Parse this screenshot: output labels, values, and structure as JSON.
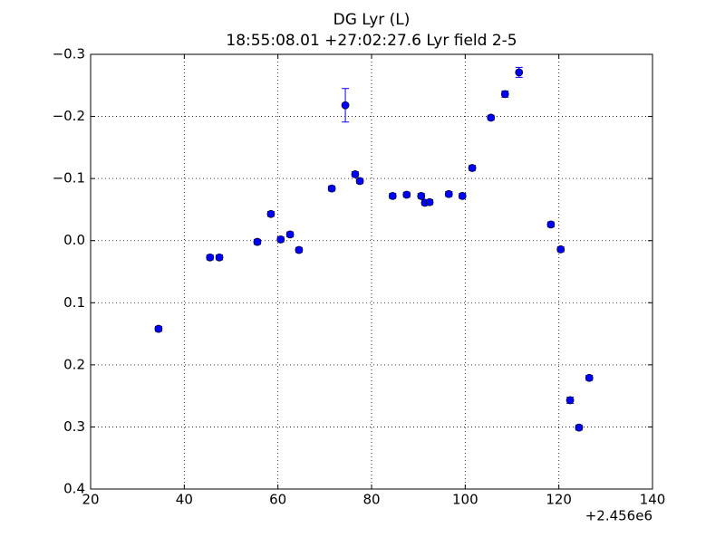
{
  "chart_data": {
    "type": "scatter",
    "title": "DG Lyr (L)",
    "subtitle": "18:55:08.01 +27:02:27.6 Lyr field 2-5",
    "x_offset_label": "+2.456e6",
    "x": [
      34.5,
      45.5,
      47.5,
      55.6,
      58.5,
      60.6,
      62.6,
      64.5,
      71.5,
      74.4,
      76.5,
      77.5,
      84.5,
      87.5,
      90.6,
      91.4,
      92.4,
      96.5,
      99.4,
      101.5,
      105.5,
      108.5,
      111.5,
      118.3,
      120.4,
      122.4,
      124.3,
      126.5
    ],
    "values": [
      0.142,
      0.027,
      0.027,
      0.002,
      -0.043,
      -0.002,
      -0.01,
      0.015,
      -0.084,
      -0.218,
      -0.107,
      -0.096,
      -0.072,
      -0.074,
      -0.072,
      -0.061,
      -0.062,
      -0.075,
      -0.072,
      -0.117,
      -0.198,
      -0.236,
      -0.271,
      -0.026,
      0.014,
      0.257,
      0.301,
      0.221
    ],
    "errors": [
      0.004,
      0.004,
      0.004,
      0.004,
      0.004,
      0.004,
      0.004,
      0.004,
      0.004,
      0.027,
      0.004,
      0.004,
      0.004,
      0.004,
      0.004,
      0.004,
      0.004,
      0.004,
      0.004,
      0.004,
      0.004,
      0.005,
      0.008,
      0.004,
      0.004,
      0.005,
      0.004,
      0.004
    ],
    "color": "#0000ff",
    "xlim": [
      20,
      140
    ],
    "xticks": [
      20,
      40,
      60,
      80,
      100,
      120,
      140
    ],
    "ylim": [
      0.4,
      -0.3
    ],
    "yticks": [
      {
        "value": -0.3,
        "label": "−0.3"
      },
      {
        "value": -0.2,
        "label": "−0.2"
      },
      {
        "value": -0.1,
        "label": "−0.1"
      },
      {
        "value": 0,
        "label": "0.0"
      },
      0.1,
      0.2,
      0.3,
      0.4
    ],
    "grid": true
  }
}
